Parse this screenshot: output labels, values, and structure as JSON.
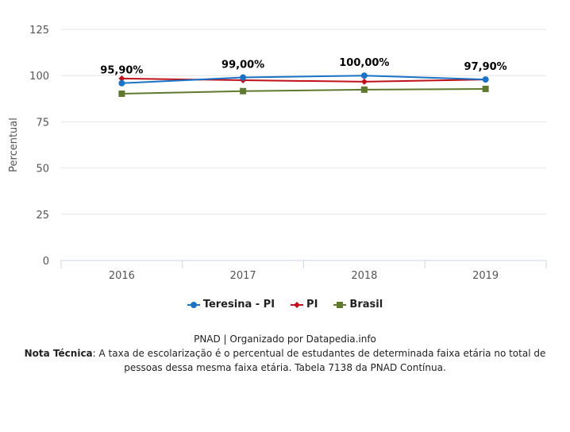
{
  "chart_data": {
    "type": "line",
    "title": "",
    "xlabel": "",
    "ylabel": "Percentual",
    "ylim": [
      0,
      125
    ],
    "yticks": [
      0,
      25,
      50,
      75,
      100,
      125
    ],
    "grid": true,
    "legend_placement": "bottom",
    "categories": [
      "2016",
      "2017",
      "2018",
      "2019"
    ],
    "series": [
      {
        "name": "Teresina - PI",
        "color": "#1a73c4",
        "marker": "circle",
        "values": [
          95.9,
          99.0,
          100.0,
          97.9
        ],
        "labels": [
          "95,90%",
          "99,00%",
          "100,00%",
          "97,90%"
        ]
      },
      {
        "name": "PI",
        "color": "#c0101c",
        "marker": "diamond",
        "values": [
          98.4,
          97.5,
          96.7,
          97.9
        ]
      },
      {
        "name": "Brasil",
        "color": "#5f7a2e",
        "marker": "square",
        "values": [
          90.2,
          91.6,
          92.4,
          92.8
        ]
      }
    ]
  },
  "footer": {
    "source": "PNAD | Organizado por Datapedia.info",
    "note_label": "Nota Técnica",
    "note_text": ": A taxa de escolarização é o percentual de estudantes de determinada faixa etária no total de pessoas dessa mesma faixa etária. Tabela 7138 da PNAD Contínua."
  }
}
